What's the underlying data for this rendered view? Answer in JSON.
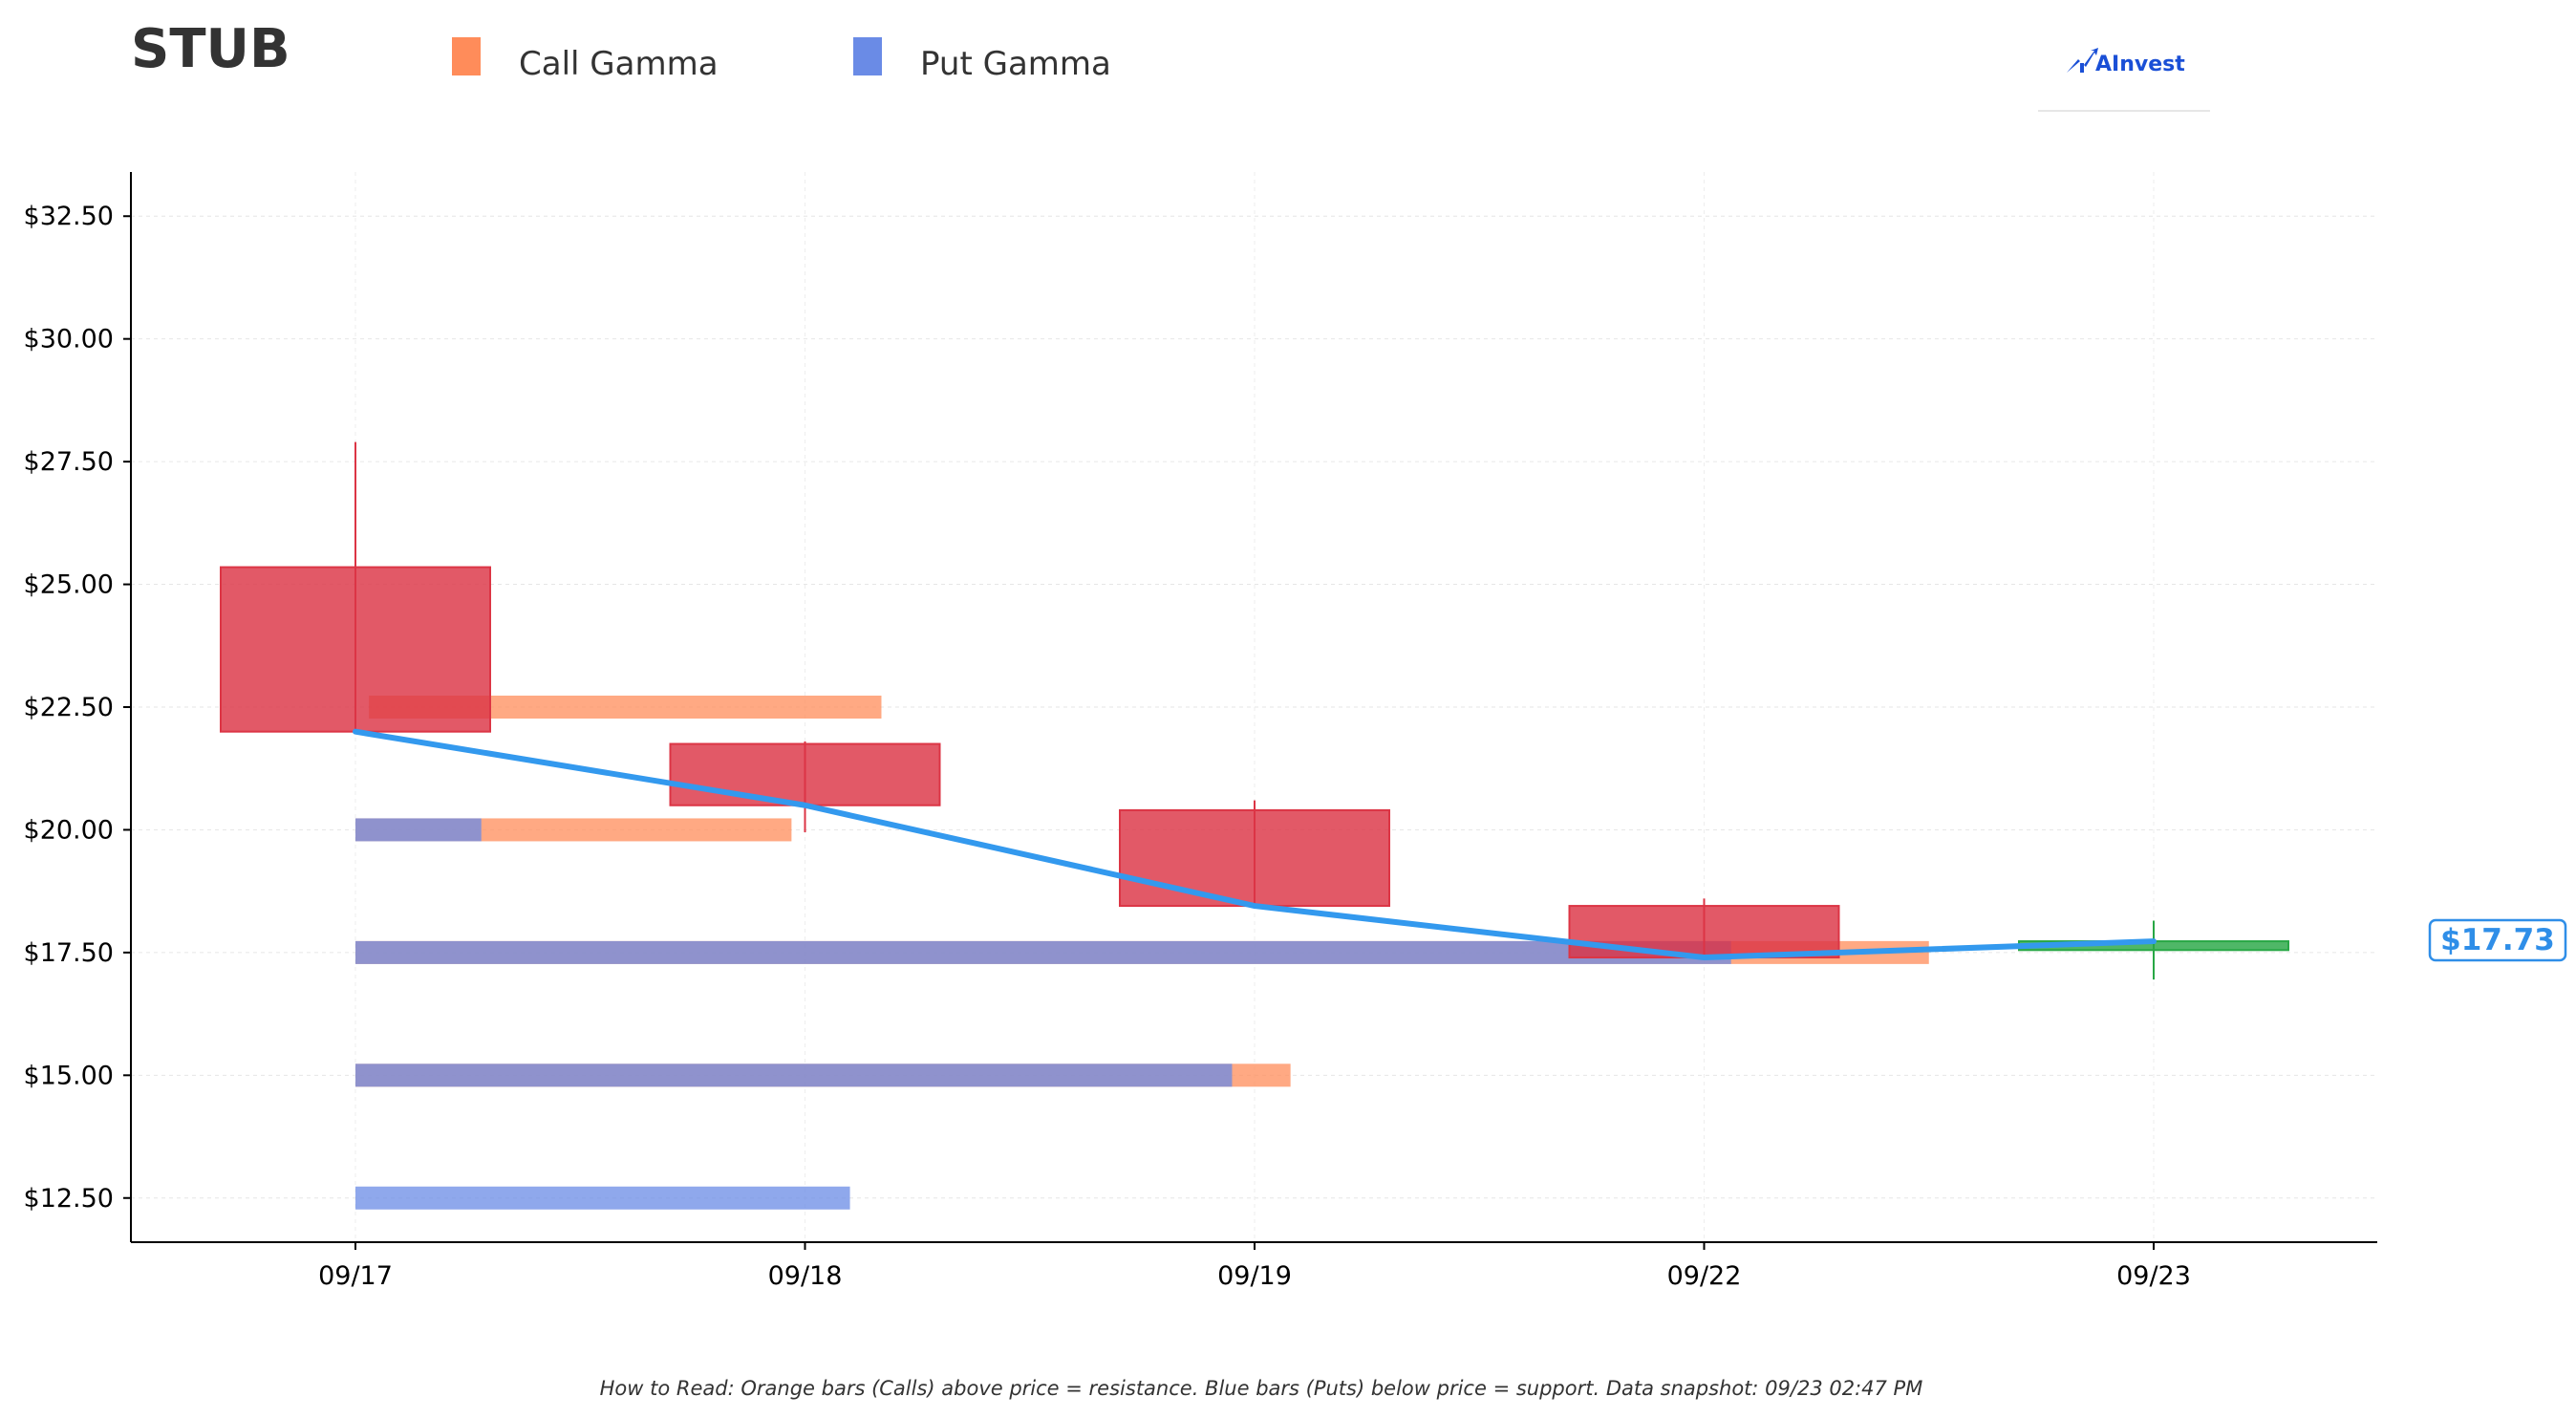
{
  "title": "STUB",
  "legend": [
    {
      "label": "Call Gamma",
      "color": "#ff8c5a"
    },
    {
      "label": "Put Gamma",
      "color": "#6a8be6"
    }
  ],
  "logo": {
    "text": "AInvest"
  },
  "footer": "How to Read: Orange bars (Calls) above price = resistance. Blue bars (Puts) below price = support. Data snapshot: 09/23 02:47 PM",
  "current_price_label": "$17.73",
  "chart_data": {
    "type": "candlestick",
    "categories": [
      "09/17",
      "09/18",
      "09/19",
      "09/22",
      "09/23"
    ],
    "y_ticks": [
      "$12.50",
      "$15.00",
      "$17.50",
      "$20.00",
      "$22.50",
      "$25.00",
      "$27.50",
      "$30.00",
      "$32.50"
    ],
    "y_tick_values": [
      12.5,
      15,
      17.5,
      20,
      22.5,
      25,
      27.5,
      30,
      32.5
    ],
    "ylim": [
      11.6,
      33.4
    ],
    "xlim": [
      -0.5,
      4.5
    ],
    "grid": true,
    "candles": [
      {
        "date": "09/17",
        "open": 25.35,
        "close": 22.0,
        "high": 27.9,
        "low": 22.0,
        "direction": "down"
      },
      {
        "date": "09/18",
        "open": 21.75,
        "close": 20.5,
        "high": 21.8,
        "low": 19.95,
        "direction": "down"
      },
      {
        "date": "09/19",
        "open": 20.4,
        "close": 18.45,
        "high": 20.6,
        "low": 18.45,
        "direction": "down"
      },
      {
        "date": "09/22",
        "open": 18.45,
        "close": 17.4,
        "high": 18.6,
        "low": 17.4,
        "direction": "down"
      },
      {
        "date": "09/23",
        "open": 17.55,
        "close": 17.73,
        "high": 18.15,
        "low": 16.95,
        "direction": "up"
      }
    ],
    "close_line": {
      "color": "#3399ee",
      "x": [
        0,
        1,
        2,
        3,
        4
      ],
      "y": [
        22.0,
        20.5,
        18.45,
        17.4,
        17.73
      ]
    },
    "gamma_bars": [
      {
        "strike": 22.5,
        "call_gamma": 1.14,
        "put_gamma": 0.0,
        "call_start": 0.03
      },
      {
        "strike": 20.0,
        "call_gamma": 0.97,
        "put_gamma": 0.28
      },
      {
        "strike": 17.5,
        "call_gamma": 3.5,
        "put_gamma": 3.06
      },
      {
        "strike": 15.0,
        "call_gamma": 2.08,
        "put_gamma": 1.95
      },
      {
        "strike": 12.5,
        "call_gamma": 0.0,
        "put_gamma": 1.1
      }
    ],
    "colors": {
      "call": "#ff8c5a",
      "put": "#6a8be6",
      "down_candle": "#dc3545",
      "up_candle": "#28a745",
      "price_line": "#3399ee"
    }
  }
}
